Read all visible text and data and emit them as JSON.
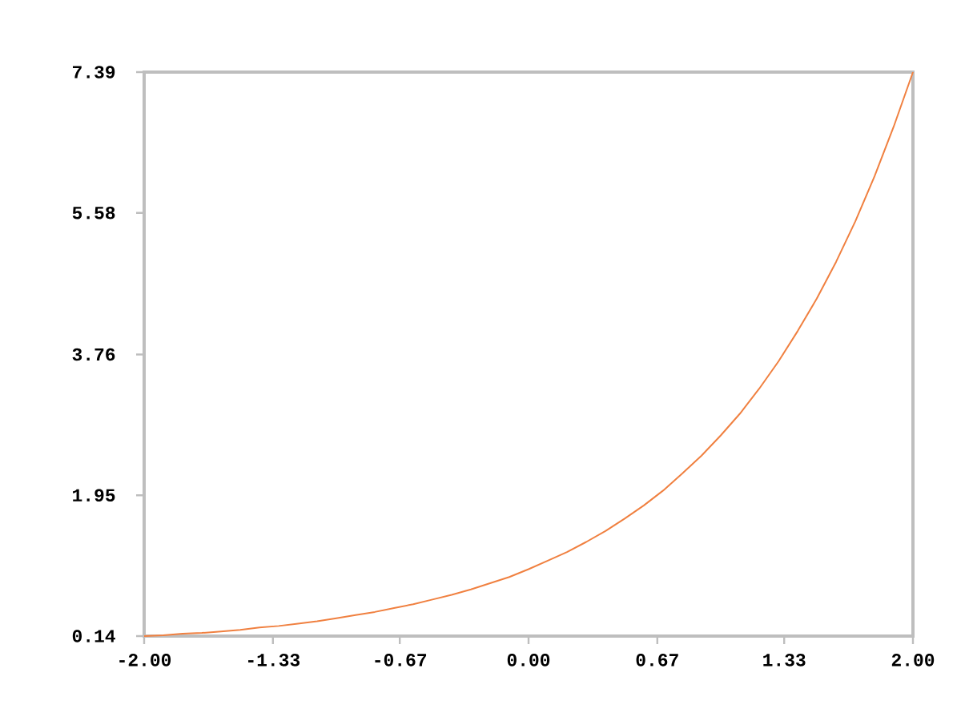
{
  "chart_data": {
    "type": "line",
    "x": [
      -2.0,
      -1.9,
      -1.8,
      -1.7,
      -1.6,
      -1.5,
      -1.4,
      -1.3,
      -1.2,
      -1.1,
      -1.0,
      -0.9,
      -0.8,
      -0.7,
      -0.6,
      -0.5,
      -0.4,
      -0.3,
      -0.2,
      -0.1,
      0.0,
      0.1,
      0.2,
      0.3,
      0.4,
      0.5,
      0.6,
      0.7,
      0.8,
      0.9,
      1.0,
      1.1,
      1.2,
      1.3,
      1.4,
      1.5,
      1.6,
      1.7,
      1.8,
      1.9,
      2.0
    ],
    "series": [
      {
        "color": "#f08040",
        "values": [
          0.14,
          0.15,
          0.17,
          0.18,
          0.2,
          0.22,
          0.25,
          0.27,
          0.3,
          0.33,
          0.37,
          0.41,
          0.45,
          0.5,
          0.55,
          0.61,
          0.67,
          0.74,
          0.82,
          0.9,
          1.0,
          1.11,
          1.22,
          1.35,
          1.49,
          1.65,
          1.82,
          2.01,
          2.23,
          2.46,
          2.72,
          3.0,
          3.32,
          3.67,
          4.06,
          4.48,
          4.95,
          5.47,
          6.05,
          6.69,
          7.39
        ]
      }
    ],
    "xlim": [
      -2,
      2
    ],
    "ylim": [
      0.14,
      7.39
    ],
    "xticks": [
      {
        "value": -2,
        "label": "-2.00"
      },
      {
        "value": -1.33,
        "label": "-1.33"
      },
      {
        "value": -0.67,
        "label": "-0.67"
      },
      {
        "value": 0,
        "label": "0.00"
      },
      {
        "value": 0.67,
        "label": "0.67"
      },
      {
        "value": 1.33,
        "label": "1.33"
      },
      {
        "value": 2,
        "label": "2.00"
      }
    ],
    "yticks": [
      0.14,
      1.95,
      3.76,
      5.58,
      7.39
    ],
    "grid": false,
    "legend": false,
    "marker": "none",
    "line_style": "solid"
  }
}
